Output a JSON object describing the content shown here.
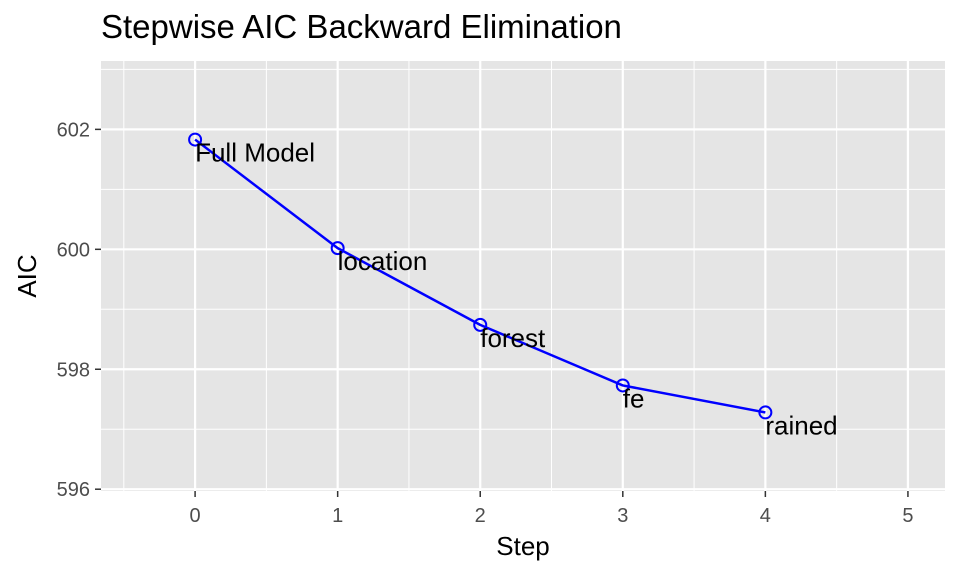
{
  "chart_data": {
    "type": "line",
    "title": "Stepwise AIC Backward Elimination",
    "xlabel": "Step",
    "ylabel": "AIC",
    "xlim": [
      -0.66,
      5.26
    ],
    "ylim": [
      595.97,
      603.14
    ],
    "x_ticks": [
      0,
      1,
      2,
      3,
      4,
      5
    ],
    "y_ticks": [
      596,
      598,
      600,
      602
    ],
    "grid": true,
    "legend": "none",
    "series": [
      {
        "x": [
          0,
          1,
          2,
          3,
          4
        ],
        "y": [
          601.83,
          600.02,
          598.74,
          597.73,
          597.28
        ],
        "labels": [
          "Full Model",
          "location",
          "forest",
          "fe",
          "rained"
        ],
        "color": "#0000ff"
      }
    ],
    "colors": {
      "panel_background": "#e5e5e5",
      "grid": "#ffffff",
      "line": "#0000ff",
      "tick_text": "#4d4d4d"
    }
  }
}
